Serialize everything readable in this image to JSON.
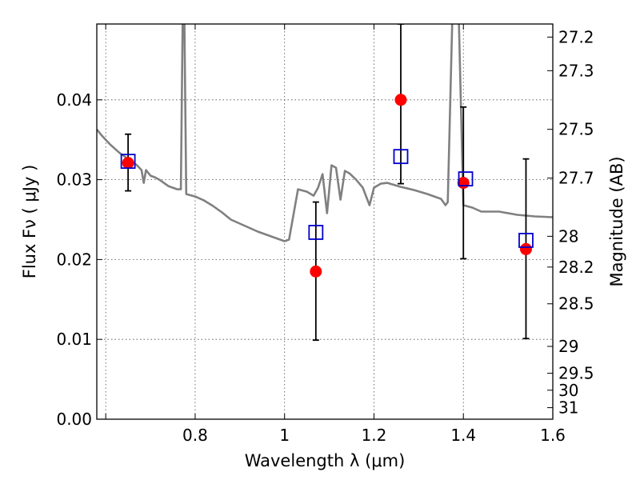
{
  "chart_data": {
    "type": "scatter",
    "xlabel": "Wavelength  λ (μm)",
    "ylabel": "Flux  Fν  ( μJy )",
    "ylabel_right": "Magnitude (AB)",
    "xlim": [
      0.58,
      1.6
    ],
    "ylim": [
      0.0,
      0.0495
    ],
    "grid": true,
    "x_ticks": [
      {
        "value": 0.6,
        "label": ""
      },
      {
        "value": 0.8,
        "label": "0.8"
      },
      {
        "value": 1.0,
        "label": "1"
      },
      {
        "value": 1.2,
        "label": "1.2"
      },
      {
        "value": 1.4,
        "label": "1.4"
      },
      {
        "value": 1.6,
        "label": "1.6"
      }
    ],
    "y_ticks": [
      {
        "value": 0.0,
        "label": "0.00"
      },
      {
        "value": 0.01,
        "label": "0.01"
      },
      {
        "value": 0.02,
        "label": "0.02"
      },
      {
        "value": 0.03,
        "label": "0.03"
      },
      {
        "value": 0.04,
        "label": "0.04"
      }
    ],
    "mag_ticks": [
      {
        "value": 27.2,
        "label": "27.2"
      },
      {
        "value": 27.3,
        "label": "27.3"
      },
      {
        "value": 27.5,
        "label": "27.5"
      },
      {
        "value": 27.7,
        "label": "27.7"
      },
      {
        "value": 28.0,
        "label": "28"
      },
      {
        "value": 28.2,
        "label": "28.2"
      },
      {
        "value": 28.5,
        "label": "28.5"
      },
      {
        "value": 29.0,
        "label": "29"
      },
      {
        "value": 29.5,
        "label": "29.5"
      },
      {
        "value": 30.0,
        "label": "30"
      },
      {
        "value": 31.0,
        "label": "31"
      }
    ],
    "colors": {
      "model_line": "#808080",
      "observed": "#ff0000",
      "model_flux": "#0000cc",
      "errorbar": "#000000"
    },
    "series": [
      {
        "kind": "line",
        "x": [
          0.58,
          0.59,
          0.6,
          0.61,
          0.62,
          0.63,
          0.64,
          0.65,
          0.66,
          0.67,
          0.68,
          0.685,
          0.69,
          0.7,
          0.71,
          0.72,
          0.73,
          0.74,
          0.75,
          0.76,
          0.768,
          0.772,
          0.776,
          0.78,
          0.8,
          0.82,
          0.84,
          0.86,
          0.88,
          0.9,
          0.92,
          0.94,
          0.96,
          0.98,
          1.0,
          1.01,
          1.03,
          1.05,
          1.065,
          1.075,
          1.085,
          1.095,
          1.105,
          1.115,
          1.125,
          1.135,
          1.145,
          1.16,
          1.175,
          1.19,
          1.2,
          1.215,
          1.23,
          1.26,
          1.29,
          1.32,
          1.35,
          1.36,
          1.365,
          1.375,
          1.38,
          1.39,
          1.4,
          1.42,
          1.44,
          1.48,
          1.52,
          1.56,
          1.6
        ],
        "y": [
          0.0363,
          0.0356,
          0.035,
          0.0344,
          0.0339,
          0.0334,
          0.033,
          0.0326,
          0.0322,
          0.0318,
          0.0312,
          0.0296,
          0.0312,
          0.0305,
          0.0303,
          0.03,
          0.0296,
          0.0292,
          0.029,
          0.0288,
          0.0288,
          0.0498,
          0.0498,
          0.0282,
          0.0279,
          0.0274,
          0.0267,
          0.0259,
          0.025,
          0.0245,
          0.024,
          0.0235,
          0.0231,
          0.0227,
          0.0223,
          0.0225,
          0.0288,
          0.0285,
          0.028,
          0.029,
          0.0307,
          0.0258,
          0.0318,
          0.0315,
          0.0275,
          0.0311,
          0.0308,
          0.03,
          0.029,
          0.0268,
          0.029,
          0.0295,
          0.0296,
          0.0291,
          0.0287,
          0.0282,
          0.0276,
          0.0268,
          0.0272,
          0.0498,
          0.0498,
          0.0498,
          0.0268,
          0.0265,
          0.026,
          0.026,
          0.0256,
          0.0254,
          0.0253
        ]
      },
      {
        "kind": "points_with_errors",
        "x": [
          0.65,
          1.07,
          1.26,
          1.4,
          1.54
        ],
        "y": [
          0.0321,
          0.0185,
          0.04,
          0.0296,
          0.0213
        ],
        "yerr_low": [
          0.0286,
          0.0099,
          0.0295,
          0.0201,
          0.0101
        ],
        "yerr_high": [
          0.0357,
          0.0272,
          0.0495,
          0.0391,
          0.0326
        ]
      },
      {
        "kind": "squares",
        "x": [
          0.65,
          1.07,
          1.26,
          1.405,
          1.54
        ],
        "y": [
          0.0323,
          0.0234,
          0.0329,
          0.0301,
          0.0224
        ]
      }
    ]
  }
}
